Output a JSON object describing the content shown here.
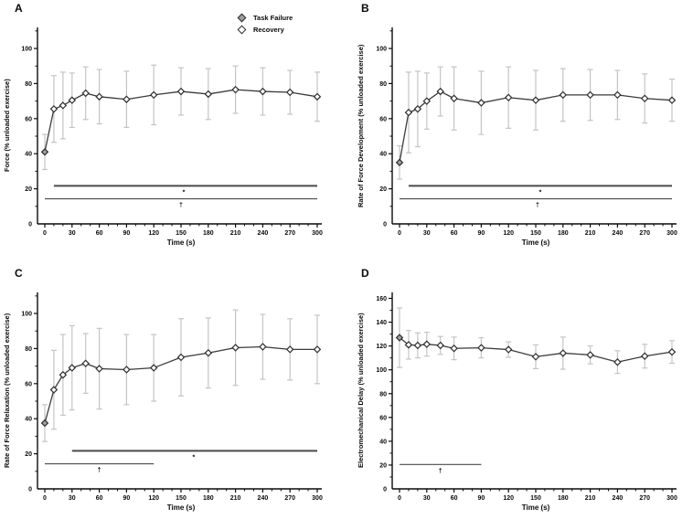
{
  "colors": {
    "background": "#ffffff",
    "line": "#3b3b3b",
    "marker_edge": "#2d2d2d",
    "recovery_fill": "#ffffff",
    "task_failure_fill": "#9e9e9e",
    "error_bar": "#c4c4c4",
    "sig_line": "#4a4a4a",
    "axis": "#0a0a0a",
    "text": "#0a0a0a"
  },
  "legend": {
    "items": [
      {
        "label": "Task Failure",
        "marker": "filled-diamond"
      },
      {
        "label": "Recovery",
        "marker": "open-diamond"
      }
    ],
    "position": "top-right inside panel A"
  },
  "chart_data": [
    {
      "type": "line",
      "panel_label": "A",
      "xlabel": "Time (s)",
      "ylabel": "Force (% unloaded exercise)",
      "x": [
        0,
        10,
        20,
        30,
        45,
        60,
        90,
        120,
        150,
        180,
        210,
        240,
        270,
        300
      ],
      "y": [
        41,
        65.5,
        67.5,
        70.5,
        74.5,
        72.5,
        71,
        73.5,
        75.5,
        74,
        76.5,
        75.5,
        75,
        72.5
      ],
      "yerr": [
        10,
        19,
        19,
        15.5,
        15,
        15.5,
        16,
        17,
        13.5,
        14.5,
        13.5,
        13.5,
        12.5,
        14
      ],
      "task_failure_point_x": 0,
      "xlim": [
        0,
        300
      ],
      "x_major_step": 30,
      "x_minor_step": 10,
      "ylim": [
        0,
        112
      ],
      "y_major_step": 20,
      "y_minor_step": 10,
      "y_top_label": 100,
      "grid": false,
      "sig_lines": [
        {
          "symbol": "*",
          "x_from": 10,
          "x_to": 300,
          "y": 21.7,
          "symbol_x": 153
        },
        {
          "symbol": "†",
          "x_from": 0,
          "x_to": 300,
          "y": 14.3,
          "symbol_x": 150
        }
      ]
    },
    {
      "type": "line",
      "panel_label": "B",
      "xlabel": "Time (s)",
      "ylabel": "Rate of Force Development (% unloaded exercise)",
      "x": [
        0,
        10,
        20,
        30,
        45,
        60,
        90,
        120,
        150,
        180,
        210,
        240,
        270,
        300
      ],
      "y": [
        35,
        63.5,
        65.5,
        70,
        75.5,
        71.5,
        69,
        72,
        70.5,
        73.5,
        73.5,
        73.5,
        71.5,
        70.5
      ],
      "yerr": [
        9.5,
        23,
        21.5,
        16,
        14,
        18,
        18,
        17.5,
        17,
        15,
        14.5,
        14,
        14,
        12
      ],
      "task_failure_point_x": 0,
      "xlim": [
        0,
        300
      ],
      "x_major_step": 30,
      "x_minor_step": 10,
      "ylim": [
        0,
        112
      ],
      "y_major_step": 20,
      "y_minor_step": 10,
      "y_top_label": 100,
      "grid": false,
      "sig_lines": [
        {
          "symbol": "*",
          "x_from": 10,
          "x_to": 300,
          "y": 21.7,
          "symbol_x": 155
        },
        {
          "symbol": "†",
          "x_from": 0,
          "x_to": 300,
          "y": 14.3,
          "symbol_x": 152
        }
      ]
    },
    {
      "type": "line",
      "panel_label": "C",
      "xlabel": "Time (s)",
      "ylabel": "Rate of Force Relaxation (% unloaded exercise)",
      "x": [
        0,
        10,
        20,
        30,
        45,
        60,
        90,
        120,
        150,
        180,
        210,
        240,
        270,
        300
      ],
      "y": [
        37.5,
        56.5,
        65,
        69,
        71.5,
        68.5,
        68,
        69,
        75,
        77.5,
        80.5,
        81,
        79.5,
        79.5
      ],
      "yerr": [
        10.5,
        22.5,
        23,
        24,
        17,
        23,
        20,
        19,
        22,
        20,
        21.5,
        18.5,
        17.5,
        19.5
      ],
      "task_failure_point_x": 0,
      "xlim": [
        0,
        300
      ],
      "x_major_step": 30,
      "x_minor_step": 10,
      "ylim": [
        0,
        112
      ],
      "y_major_step": 20,
      "y_minor_step": 10,
      "y_top_label": 100,
      "grid": false,
      "sig_lines": [
        {
          "symbol": "*",
          "x_from": 30,
          "x_to": 300,
          "y": 21.7,
          "symbol_x": 164
        },
        {
          "symbol": "†",
          "x_from": 0,
          "x_to": 120,
          "y": 14.3,
          "symbol_x": 60
        }
      ]
    },
    {
      "type": "line",
      "panel_label": "D",
      "xlabel": "Time (s)",
      "ylabel": "Electromechanical Delay (% unloaded exercise)",
      "x": [
        0,
        10,
        20,
        30,
        45,
        60,
        90,
        120,
        150,
        180,
        210,
        240,
        270,
        300
      ],
      "y": [
        127,
        121,
        120.5,
        121.5,
        120.5,
        118,
        118.5,
        117,
        111,
        114,
        112.5,
        106.5,
        111.5,
        115
      ],
      "yerr": [
        25,
        12,
        10.5,
        10,
        7.5,
        9.5,
        8.5,
        6.5,
        10,
        13.5,
        7.5,
        9.5,
        10,
        9.5
      ],
      "task_failure_point_x": 0,
      "xlim": [
        0,
        300
      ],
      "x_major_step": 30,
      "x_minor_step": 10,
      "ylim": [
        0,
        165
      ],
      "y_major_step": 20,
      "y_minor_step": 10,
      "y_top_label": 160,
      "grid": false,
      "sig_lines": [
        {
          "symbol": "†",
          "x_from": 0,
          "x_to": 90,
          "y": 20.5,
          "symbol_x": 45
        }
      ]
    }
  ]
}
